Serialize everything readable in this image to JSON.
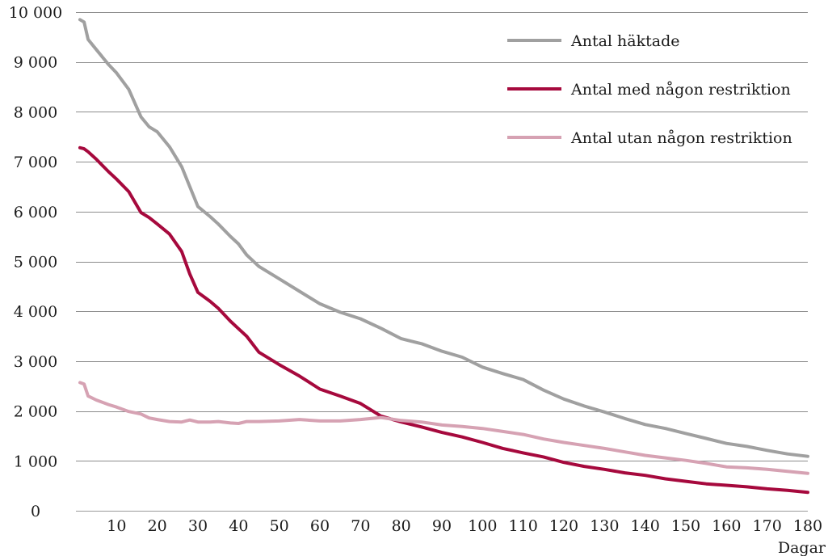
{
  "chart_data": {
    "type": "line",
    "xlabel": "Dagar",
    "ylabel": "",
    "xlim": [
      0,
      180
    ],
    "ylim": [
      0,
      10000
    ],
    "x_ticks": [
      10,
      20,
      30,
      40,
      50,
      60,
      70,
      80,
      90,
      100,
      110,
      120,
      130,
      140,
      150,
      160,
      170,
      180
    ],
    "y_ticks": [
      0,
      1000,
      2000,
      3000,
      4000,
      5000,
      6000,
      7000,
      8000,
      9000,
      10000
    ],
    "y_tick_labels": [
      "0",
      "1 000",
      "2 000",
      "3 000",
      "4 000",
      "5 000",
      "6 000",
      "7 000",
      "8 000",
      "9 000",
      "10 000"
    ],
    "grid": "horizontal",
    "legend_position": "top-right",
    "x": [
      1,
      2,
      3,
      5,
      8,
      10,
      13,
      16,
      18,
      20,
      23,
      26,
      28,
      30,
      33,
      35,
      38,
      40,
      42,
      45,
      50,
      55,
      60,
      65,
      70,
      75,
      80,
      85,
      90,
      95,
      100,
      105,
      110,
      115,
      120,
      125,
      130,
      135,
      140,
      145,
      150,
      155,
      160,
      165,
      170,
      175,
      180
    ],
    "series": [
      {
        "name": "Antal häktade",
        "color": "#a0a0a0",
        "values": [
          9850,
          9800,
          9450,
          9250,
          8950,
          8780,
          8450,
          7900,
          7700,
          7600,
          7300,
          6900,
          6500,
          6100,
          5900,
          5750,
          5500,
          5350,
          5130,
          4900,
          4650,
          4400,
          4150,
          3980,
          3850,
          3660,
          3450,
          3350,
          3200,
          3080,
          2880,
          2750,
          2630,
          2420,
          2240,
          2100,
          1980,
          1850,
          1730,
          1650,
          1550,
          1450,
          1350,
          1290,
          1210,
          1140,
          1090
        ]
      },
      {
        "name": "Antal med någon restriktion",
        "color": "#a6093d",
        "values": [
          7280,
          7260,
          7200,
          7050,
          6800,
          6650,
          6400,
          5980,
          5880,
          5750,
          5550,
          5200,
          4750,
          4380,
          4200,
          4060,
          3800,
          3650,
          3500,
          3180,
          2930,
          2700,
          2440,
          2300,
          2150,
          1900,
          1780,
          1680,
          1570,
          1480,
          1370,
          1250,
          1160,
          1080,
          970,
          890,
          830,
          760,
          710,
          640,
          590,
          540,
          510,
          480,
          440,
          410,
          370
        ]
      },
      {
        "name": "Antal utan någon restriktion",
        "color": "#d6a2b3",
        "values": [
          2570,
          2540,
          2300,
          2220,
          2130,
          2080,
          1990,
          1940,
          1860,
          1830,
          1790,
          1780,
          1820,
          1780,
          1780,
          1790,
          1760,
          1750,
          1790,
          1790,
          1800,
          1830,
          1800,
          1800,
          1830,
          1870,
          1810,
          1780,
          1720,
          1690,
          1650,
          1590,
          1530,
          1440,
          1370,
          1310,
          1250,
          1180,
          1110,
          1060,
          1010,
          950,
          880,
          860,
          830,
          790,
          750
        ]
      }
    ]
  }
}
